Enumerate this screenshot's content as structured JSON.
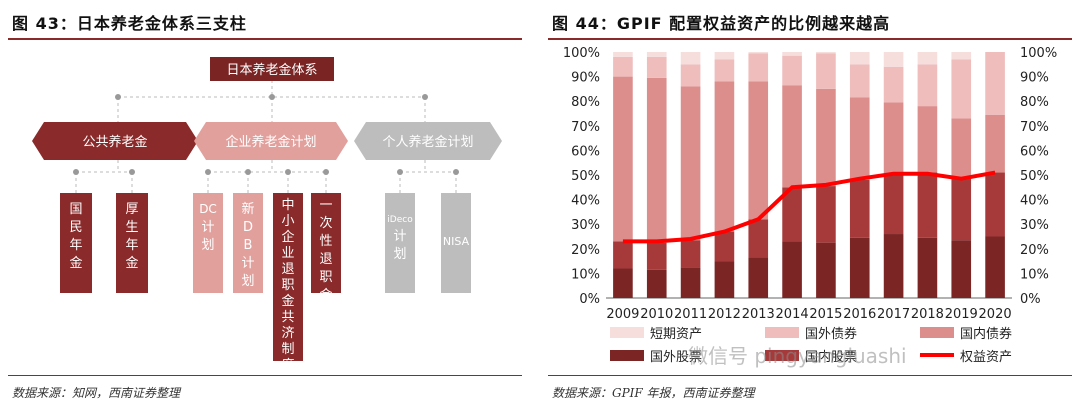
{
  "left": {
    "figure_title": "图 43：日本养老金体系三支柱",
    "source": "数据来源：知网，西南证券整理",
    "root_label": "日本养老金体系",
    "pillars": [
      {
        "label": "公共养老金",
        "boxes": [
          "国民年金",
          "厚生年金"
        ]
      },
      {
        "label": "企业养老金计划",
        "boxes": [
          "DC计划",
          "新DB计划",
          "中小企业退职金共济制度",
          "一次性退职金"
        ]
      },
      {
        "label": "个人养老金计划",
        "boxes": [
          "iDeco计划",
          "NISA"
        ]
      }
    ],
    "colors": {
      "dark": "#8a2a2a",
      "mid": "#e2a09d",
      "grey": "#bdbdbd",
      "root": "#7a2424"
    }
  },
  "right": {
    "figure_title": "图 44：GPIF 配置权益资产的比例越来越高",
    "source": "数据来源：GPIF 年报，西南证券整理",
    "watermark": "微信号 pingyangiuashi"
  },
  "chart_data": {
    "type": "bar",
    "stacked": true,
    "categories": [
      "2009",
      "2010",
      "2011",
      "2012",
      "2013",
      "2014",
      "2015",
      "2016",
      "2017",
      "2018",
      "2019",
      "2020"
    ],
    "series": [
      {
        "name": "国外股票",
        "color": "#7b2525",
        "values": [
          12,
          11.5,
          12.5,
          15,
          16.5,
          23,
          22.5,
          24.5,
          26,
          24.5,
          23.5,
          25
        ]
      },
      {
        "name": "国内股票",
        "color": "#a63a3a",
        "values": [
          11,
          11,
          11,
          12,
          15.5,
          22,
          23,
          23.5,
          24.5,
          26.5,
          25,
          26
        ]
      },
      {
        "name": "国内债券",
        "color": "#dc8e8c",
        "values": [
          67,
          67,
          62.5,
          61,
          56,
          41.5,
          39.5,
          33.5,
          29,
          27,
          24.5,
          23.5
        ]
      },
      {
        "name": "国外债券",
        "color": "#eebdbc",
        "values": [
          8,
          8.5,
          9,
          9,
          11.5,
          12,
          14.5,
          13.5,
          14.5,
          17,
          24,
          25.5
        ]
      },
      {
        "name": "短期资产",
        "color": "#f6dedd",
        "values": [
          2,
          2,
          5,
          3,
          0.5,
          1.5,
          0.5,
          5,
          6,
          5,
          3,
          0
        ]
      }
    ],
    "line": {
      "name": "权益资产",
      "color": "#ff0000",
      "values": [
        23,
        23,
        24,
        27,
        32,
        45,
        46,
        48.5,
        50.5,
        50.5,
        48.5,
        51
      ]
    },
    "ylim": [
      0,
      100
    ],
    "yticks": [
      "0%",
      "10%",
      "20%",
      "30%",
      "40%",
      "50%",
      "60%",
      "70%",
      "80%",
      "90%",
      "100%"
    ],
    "legend_placement": "bottom",
    "grid": false
  }
}
